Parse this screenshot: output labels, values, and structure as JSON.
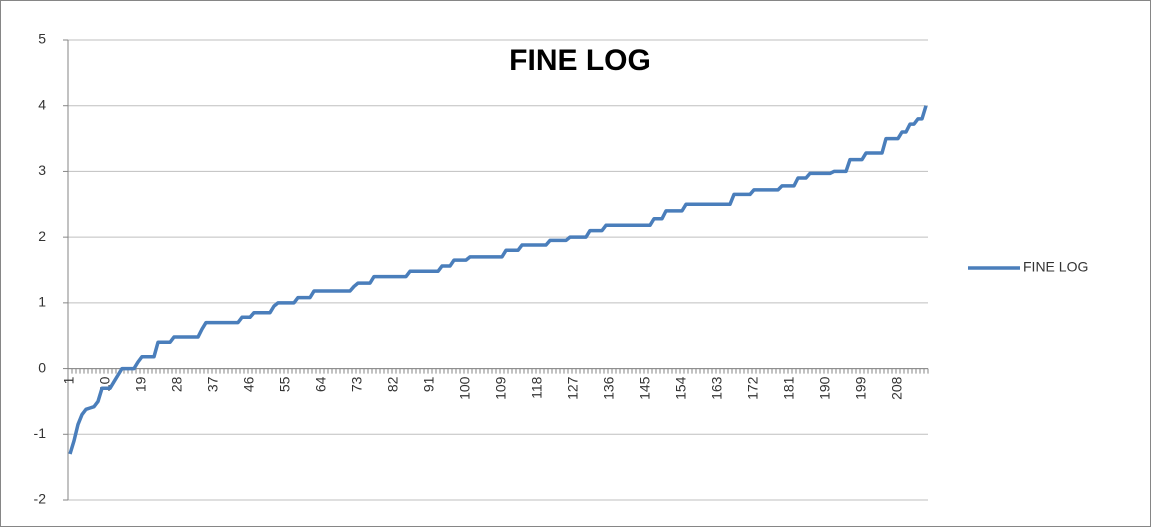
{
  "chart_data": {
    "type": "line",
    "title": "FINE LOG",
    "categories": [
      1,
      null,
      null,
      null,
      null,
      null,
      null,
      null,
      null,
      10,
      null,
      null,
      null,
      null,
      null,
      null,
      null,
      null,
      19,
      null,
      null,
      null,
      null,
      null,
      null,
      null,
      null,
      28,
      null,
      null,
      null,
      null,
      null,
      null,
      null,
      null,
      37,
      null,
      null,
      null,
      null,
      null,
      null,
      null,
      null,
      46,
      null,
      null,
      null,
      null,
      null,
      null,
      null,
      null,
      55,
      null,
      null,
      null,
      null,
      null,
      null,
      null,
      null,
      64,
      null,
      null,
      null,
      null,
      null,
      null,
      null,
      null,
      73,
      null,
      null,
      null,
      null,
      null,
      null,
      null,
      null,
      82,
      null,
      null,
      null,
      null,
      null,
      null,
      null,
      null,
      91,
      null,
      null,
      null,
      null,
      null,
      null,
      null,
      null,
      100,
      null,
      null,
      null,
      null,
      null,
      null,
      null,
      null,
      109,
      null,
      null,
      null,
      null,
      null,
      null,
      null,
      null,
      118,
      null,
      null,
      null,
      null,
      null,
      null,
      null,
      null,
      127,
      null,
      null,
      null,
      null,
      null,
      null,
      null,
      null,
      136,
      null,
      null,
      null,
      null,
      null,
      null,
      null,
      null,
      145,
      null,
      null,
      null,
      null,
      null,
      null,
      null,
      null,
      154,
      null,
      null,
      null,
      null,
      null,
      null,
      null,
      null,
      163,
      null,
      null,
      null,
      null,
      null,
      null,
      null,
      null,
      172,
      null,
      null,
      null,
      null,
      null,
      null,
      null,
      null,
      181,
      null,
      null,
      null,
      null,
      null,
      null,
      null,
      null,
      190,
      null,
      null,
      null,
      null,
      null,
      null,
      null,
      null,
      199,
      null,
      null,
      null,
      null,
      null,
      null,
      null,
      null,
      208,
      null,
      null,
      null,
      null,
      null,
      null,
      null
    ],
    "series": [
      {
        "name": "FINE LOG",
        "color": "#4a7ebb",
        "values": [
          -1.3,
          -1.1,
          -0.85,
          -0.7,
          -0.62,
          -0.6,
          -0.58,
          -0.5,
          -0.3,
          -0.3,
          -0.3,
          -0.2,
          -0.1,
          0,
          0,
          0,
          0,
          0.1,
          0.18,
          0.18,
          0.18,
          0.18,
          0.4,
          0.4,
          0.4,
          0.4,
          0.48,
          0.48,
          0.48,
          0.48,
          0.48,
          0.48,
          0.48,
          0.6,
          0.7,
          0.7,
          0.7,
          0.7,
          0.7,
          0.7,
          0.7,
          0.7,
          0.7,
          0.78,
          0.78,
          0.78,
          0.85,
          0.85,
          0.85,
          0.85,
          0.85,
          0.95,
          1,
          1,
          1,
          1,
          1,
          1.08,
          1.08,
          1.08,
          1.08,
          1.18,
          1.18,
          1.18,
          1.18,
          1.18,
          1.18,
          1.18,
          1.18,
          1.18,
          1.18,
          1.25,
          1.3,
          1.3,
          1.3,
          1.3,
          1.4,
          1.4,
          1.4,
          1.4,
          1.4,
          1.4,
          1.4,
          1.4,
          1.4,
          1.48,
          1.48,
          1.48,
          1.48,
          1.48,
          1.48,
          1.48,
          1.48,
          1.56,
          1.56,
          1.56,
          1.65,
          1.65,
          1.65,
          1.65,
          1.7,
          1.7,
          1.7,
          1.7,
          1.7,
          1.7,
          1.7,
          1.7,
          1.7,
          1.8,
          1.8,
          1.8,
          1.8,
          1.88,
          1.88,
          1.88,
          1.88,
          1.88,
          1.88,
          1.88,
          1.95,
          1.95,
          1.95,
          1.95,
          1.95,
          2,
          2,
          2,
          2,
          2,
          2.1,
          2.1,
          2.1,
          2.1,
          2.18,
          2.18,
          2.18,
          2.18,
          2.18,
          2.18,
          2.18,
          2.18,
          2.18,
          2.18,
          2.18,
          2.18,
          2.28,
          2.28,
          2.28,
          2.4,
          2.4,
          2.4,
          2.4,
          2.4,
          2.5,
          2.5,
          2.5,
          2.5,
          2.5,
          2.5,
          2.5,
          2.5,
          2.5,
          2.5,
          2.5,
          2.5,
          2.65,
          2.65,
          2.65,
          2.65,
          2.65,
          2.72,
          2.72,
          2.72,
          2.72,
          2.72,
          2.72,
          2.72,
          2.78,
          2.78,
          2.78,
          2.78,
          2.9,
          2.9,
          2.9,
          2.97,
          2.97,
          2.97,
          2.97,
          2.97,
          2.97,
          3,
          3,
          3,
          3,
          3.18,
          3.18,
          3.18,
          3.18,
          3.28,
          3.28,
          3.28,
          3.28,
          3.28,
          3.5,
          3.5,
          3.5,
          3.5,
          3.6,
          3.6,
          3.72,
          3.72,
          3.8,
          3.8,
          4
        ]
      }
    ],
    "ylim": [
      -2,
      5
    ],
    "yticks": [
      -2,
      -1,
      0,
      1,
      2,
      3,
      4,
      5
    ],
    "grid": true,
    "legend": "right"
  }
}
